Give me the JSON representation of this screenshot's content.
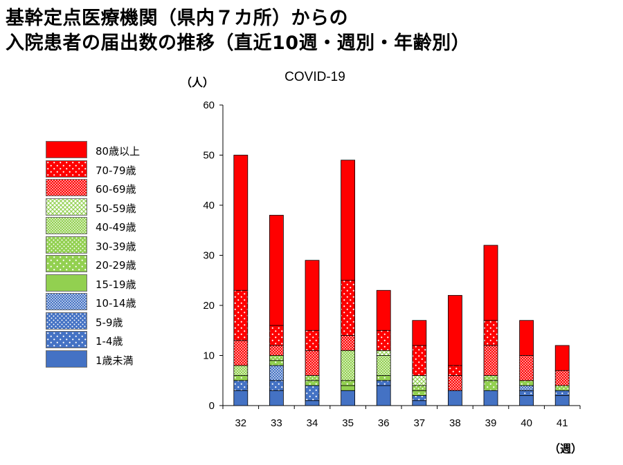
{
  "title": {
    "line1": "基幹定点医療機関（県内７カ所）からの",
    "line2": "入院患者の届出数の推移（直近10週・週別・年齢別）"
  },
  "chart_data": {
    "type": "bar",
    "stacked": true,
    "title": "COVID-19",
    "ylabel": "（人）",
    "xlabel": "（週）",
    "ylim": [
      0,
      60
    ],
    "yticks": [
      0,
      10,
      20,
      30,
      40,
      50,
      60
    ],
    "categories": [
      "32",
      "33",
      "34",
      "35",
      "36",
      "37",
      "38",
      "39",
      "40",
      "41"
    ],
    "legend_position": "left",
    "series": [
      {
        "name": "1歳未満",
        "color": "#4472c4",
        "pattern": "solid",
        "values": [
          3,
          3,
          1,
          3,
          4,
          1,
          3,
          3,
          2,
          2
        ]
      },
      {
        "name": "1-4歳",
        "color": "#4472c4",
        "pattern": "dots-sparse",
        "values": [
          2,
          2,
          3,
          0,
          1,
          1,
          0,
          0,
          1,
          1
        ]
      },
      {
        "name": "5-9歳",
        "color": "#4472c4",
        "pattern": "dots-medium",
        "values": [
          0,
          0,
          0,
          0,
          0,
          0,
          0,
          0,
          0,
          0
        ]
      },
      {
        "name": "10-14歳",
        "color": "#4472c4",
        "pattern": "dots-dense",
        "values": [
          0,
          3,
          0,
          0,
          0,
          0,
          0,
          0,
          1,
          0
        ]
      },
      {
        "name": "15-19歳",
        "color": "#92d050",
        "pattern": "solid",
        "values": [
          0,
          0,
          0,
          1,
          0,
          0,
          0,
          0,
          0,
          0
        ]
      },
      {
        "name": "20-29歳",
        "color": "#92d050",
        "pattern": "dots-sparse",
        "values": [
          1,
          1,
          1,
          1,
          1,
          1,
          0,
          2,
          1,
          0
        ]
      },
      {
        "name": "30-39歳",
        "color": "#92d050",
        "pattern": "dots-medium",
        "values": [
          0,
          1,
          1,
          0,
          0,
          1,
          0,
          1,
          0,
          1
        ]
      },
      {
        "name": "40-49歳",
        "color": "#92d050",
        "pattern": "dots-dense",
        "values": [
          2,
          0,
          0,
          6,
          4,
          0,
          0,
          0,
          0,
          0
        ]
      },
      {
        "name": "50-59歳",
        "color": "#92d050",
        "pattern": "lattice",
        "values": [
          0,
          0,
          0,
          0,
          1,
          2,
          0,
          0,
          0,
          0
        ]
      },
      {
        "name": "60-69歳",
        "color": "#ff0000",
        "pattern": "dots-dense",
        "values": [
          5,
          2,
          5,
          3,
          0,
          0,
          3,
          6,
          5,
          3
        ]
      },
      {
        "name": "70-79歳",
        "color": "#ff0000",
        "pattern": "dots-sparse",
        "values": [
          10,
          4,
          4,
          11,
          4,
          6,
          2,
          5,
          0,
          0
        ]
      },
      {
        "name": "80歳以上",
        "color": "#ff0000",
        "pattern": "solid",
        "values": [
          27,
          22,
          14,
          24,
          8,
          5,
          14,
          15,
          7,
          5
        ]
      }
    ]
  }
}
